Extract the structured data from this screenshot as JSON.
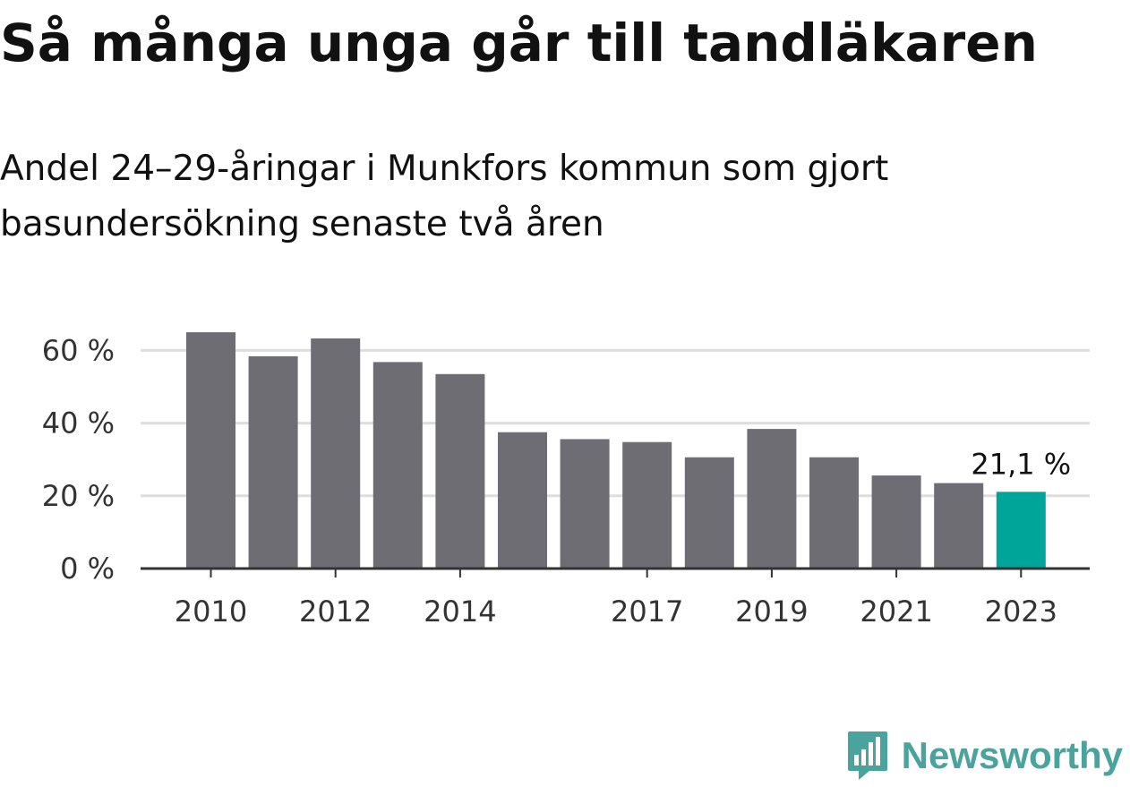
{
  "title": "Så många unga går till tandläkaren",
  "subtitle": "Andel 24–29-åringar i Munkfors kommun som gjort basundersökning senaste två åren",
  "chart_data": {
    "type": "bar",
    "categories": [
      "2010",
      "2011",
      "2012",
      "2013",
      "2014",
      "2015",
      "2016",
      "2017",
      "2018",
      "2019",
      "2020",
      "2021",
      "2022",
      "2023"
    ],
    "values": [
      65,
      58.4,
      63.3,
      56.8,
      53.5,
      37.5,
      35.6,
      34.8,
      30.6,
      38.4,
      30.6,
      25.6,
      23.5,
      21.1
    ],
    "x_tick_labels": [
      "2010",
      "2012",
      "2014",
      "2017",
      "2019",
      "2021",
      "2023"
    ],
    "y_ticks": [
      0,
      20,
      40,
      60
    ],
    "y_tick_labels": [
      "0 %",
      "20 %",
      "40 %",
      "60 %"
    ],
    "ylim": [
      0,
      68
    ],
    "grid": true,
    "highlight_index": 13,
    "highlight_label": "21,1 %",
    "colors": {
      "bar": "#6e6d73",
      "highlight": "#00a59a",
      "grid": "#dddddd",
      "axis": "#333333"
    }
  },
  "brand": {
    "name": "Newsworthy",
    "icon": "newsworthy-logo-icon",
    "color": "#4aa39c"
  }
}
